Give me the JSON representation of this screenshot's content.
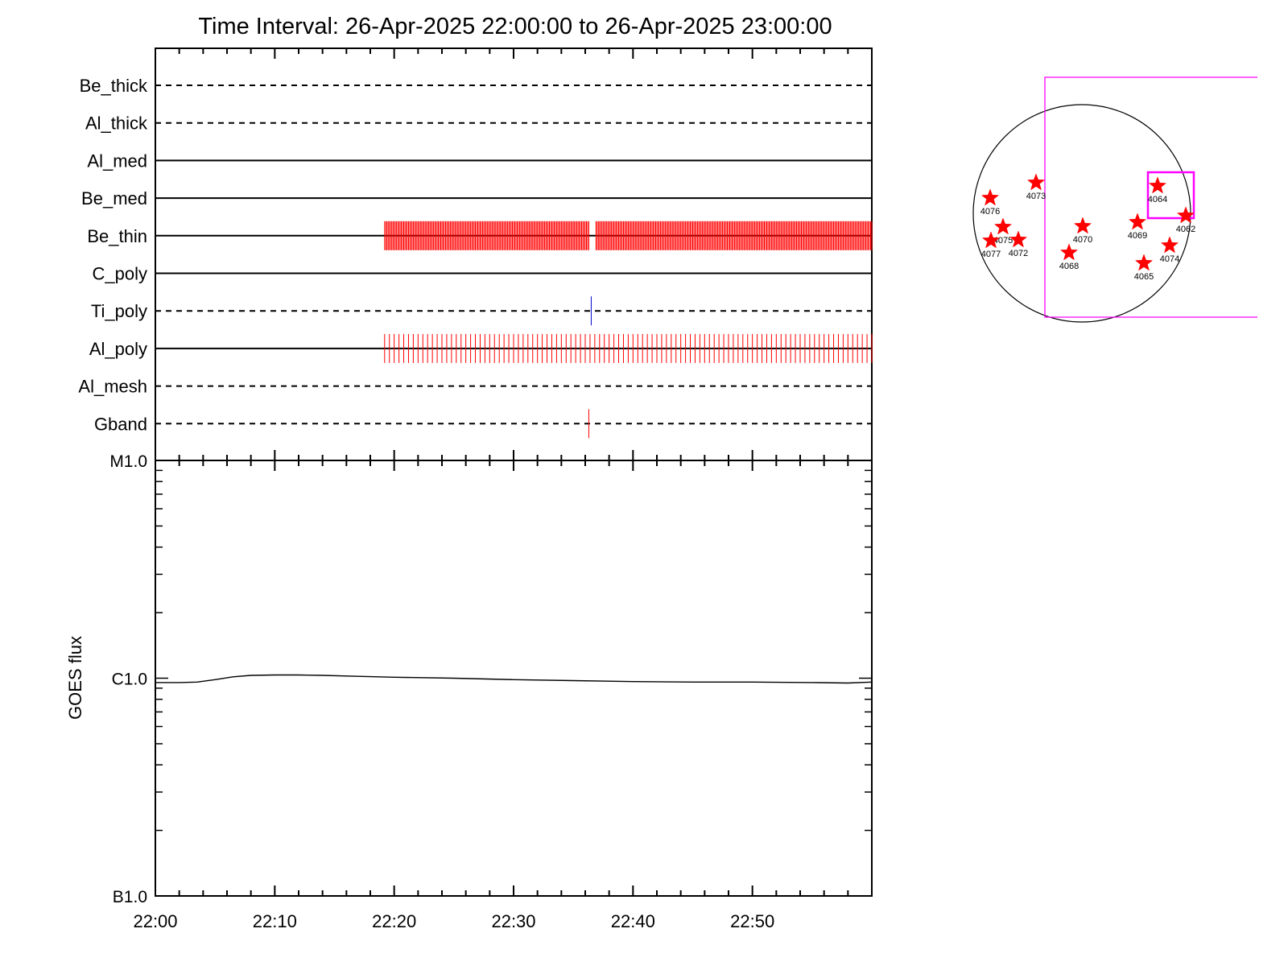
{
  "title": "Time Interval: 26-Apr-2025 22:00:00 to 26-Apr-2025 23:00:00",
  "colors": {
    "axis": "#000000",
    "exposure_red": "#ff0000",
    "exposure_blue": "#0000cc",
    "fov_magenta": "#ff00ff",
    "star_red": "#ff0000",
    "goes_line": "#000000"
  },
  "chart_data": [
    {
      "type": "timeline",
      "name": "filter-timeline",
      "x_unit": "minutes after 22:00",
      "xlim": [
        0,
        60
      ],
      "x_ticks": [
        {
          "value": 0,
          "label": "22:00"
        },
        {
          "value": 10,
          "label": "22:10"
        },
        {
          "value": 20,
          "label": "22:20"
        },
        {
          "value": 30,
          "label": "22:30"
        },
        {
          "value": 40,
          "label": "22:40"
        },
        {
          "value": 50,
          "label": "22:50"
        }
      ],
      "rows": [
        {
          "label": "Be_thick",
          "style": "dashed"
        },
        {
          "label": "Al_thick",
          "style": "dashed"
        },
        {
          "label": "Al_med",
          "style": "solid"
        },
        {
          "label": "Be_med",
          "style": "solid"
        },
        {
          "label": "Be_thin",
          "style": "solid",
          "exposures": {
            "color": "red",
            "spacing_min": 0.1,
            "ranges": [
              [
                19.2,
                36.3
              ],
              [
                36.9,
                60.0
              ]
            ]
          }
        },
        {
          "label": "C_poly",
          "style": "solid"
        },
        {
          "label": "Ti_poly",
          "style": "dashed",
          "exposures": {
            "color": "blue",
            "times": [
              36.5
            ]
          }
        },
        {
          "label": "Al_poly",
          "style": "solid",
          "exposures": {
            "color": "red",
            "spacing_min": 0.4,
            "ranges": [
              [
                19.2,
                60.0
              ]
            ]
          }
        },
        {
          "label": "Al_mesh",
          "style": "dashed"
        },
        {
          "label": "Gband",
          "style": "dashed",
          "exposures": {
            "color": "red",
            "times": [
              36.3
            ]
          }
        }
      ]
    },
    {
      "type": "line",
      "name": "goes-flux",
      "ylabel": "GOES flux",
      "x_unit": "minutes after 22:00",
      "xlim": [
        0,
        60
      ],
      "y_scale": "log",
      "ylim": [
        1e-07,
        1e-05
      ],
      "y_tick_labels": [
        {
          "value": 1e-05,
          "label": "M1.0"
        },
        {
          "value": 1e-06,
          "label": "C1.0"
        },
        {
          "value": 1e-07,
          "label": "B1.0"
        }
      ],
      "x_ticks": [
        {
          "value": 0,
          "label": "22:00"
        },
        {
          "value": 10,
          "label": "22:10"
        },
        {
          "value": 20,
          "label": "22:20"
        },
        {
          "value": 30,
          "label": "22:30"
        },
        {
          "value": 40,
          "label": "22:40"
        },
        {
          "value": 50,
          "label": "22:50"
        }
      ],
      "series": [
        {
          "x": [
            0,
            2,
            3.5,
            5,
            6.5,
            8,
            10,
            12,
            14,
            17,
            20,
            25,
            30,
            35,
            40,
            45,
            50,
            55,
            58,
            60
          ],
          "y": [
            9.55e-07,
            9.55e-07,
            9.6e-07,
            9.85e-07,
            1.015e-06,
            1.03e-06,
            1.035e-06,
            1.035e-06,
            1.03e-06,
            1.02e-06,
            1.01e-06,
            1e-06,
            9.85e-07,
            9.75e-07,
            9.65e-07,
            9.6e-07,
            9.6e-07,
            9.55e-07,
            9.5e-07,
            9.6e-07
          ]
        }
      ]
    }
  ],
  "solar_map": {
    "fov_outer": "large magenta rectangle",
    "fov_inner": "small magenta rectangle around 4064",
    "active_regions": [
      {
        "label": "4076"
      },
      {
        "label": "4073"
      },
      {
        "label": "4075"
      },
      {
        "label": "4077"
      },
      {
        "label": "4072"
      },
      {
        "label": "4070"
      },
      {
        "label": "4068"
      },
      {
        "label": "4064"
      },
      {
        "label": "4069"
      },
      {
        "label": "4062"
      },
      {
        "label": "4074"
      },
      {
        "label": "4065"
      }
    ]
  }
}
